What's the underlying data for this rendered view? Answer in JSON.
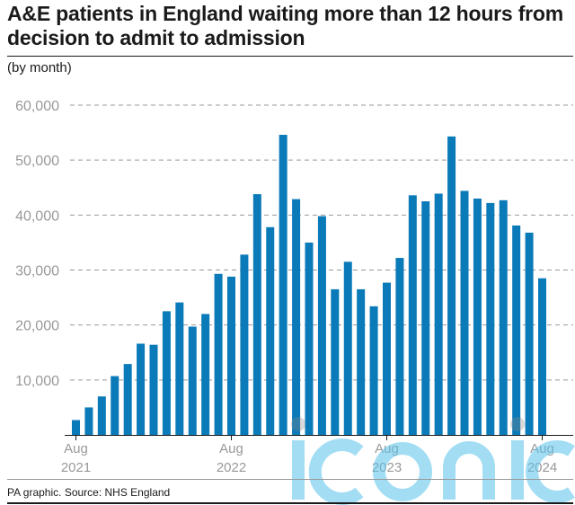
{
  "title": "A&E patients in England waiting more than 12 hours from decision to admit to admission",
  "subtitle": "(by month)",
  "source": "PA graphic. Source: NHS England",
  "watermark": "iconic",
  "colors": {
    "bar": "#0a7ab8",
    "grid": "#999999",
    "tick_text": "#999999",
    "watermark": "#58c3ec"
  },
  "chart_data": {
    "type": "bar",
    "title": "A&E patients in England waiting more than 12 hours from decision to admit to admission",
    "subtitle": "(by month)",
    "xlabel": "",
    "ylabel": "",
    "ylim": [
      0,
      60000
    ],
    "yticks": [
      10000,
      20000,
      30000,
      40000,
      50000,
      60000
    ],
    "ytick_labels": [
      "10,000",
      "20,000",
      "30,000",
      "40,000",
      "50,000",
      "60,000"
    ],
    "grid": true,
    "categories": [
      "Aug 2021",
      "Sep 2021",
      "Oct 2021",
      "Nov 2021",
      "Dec 2021",
      "Jan 2022",
      "Feb 2022",
      "Mar 2022",
      "Apr 2022",
      "May 2022",
      "Jun 2022",
      "Jul 2022",
      "Aug 2022",
      "Sep 2022",
      "Oct 2022",
      "Nov 2022",
      "Dec 2022",
      "Jan 2023",
      "Feb 2023",
      "Mar 2023",
      "Apr 2023",
      "May 2023",
      "Jun 2023",
      "Jul 2023",
      "Aug 2023",
      "Sep 2023",
      "Oct 2023",
      "Nov 2023",
      "Dec 2023",
      "Jan 2024",
      "Feb 2024",
      "Mar 2024",
      "Apr 2024",
      "May 2024",
      "Jun 2024",
      "Jul 2024",
      "Aug 2024"
    ],
    "values": [
      2700,
      5000,
      7000,
      10700,
      12900,
      16600,
      16400,
      22500,
      24100,
      19700,
      22000,
      29300,
      28800,
      32800,
      43800,
      37800,
      54600,
      42900,
      35000,
      39800,
      26500,
      31500,
      26500,
      23400,
      27700,
      32200,
      43600,
      42500,
      43900,
      54300,
      44400,
      43000,
      42200,
      42700,
      38100,
      36800,
      28500
    ],
    "x_tick_labels": [
      {
        "month": "Aug",
        "year": "2021",
        "index": 0
      },
      {
        "month": "Aug",
        "year": "2022",
        "index": 12
      },
      {
        "month": "Aug",
        "year": "2023",
        "index": 24
      },
      {
        "month": "Aug",
        "year": "2024",
        "index": 36
      }
    ]
  }
}
